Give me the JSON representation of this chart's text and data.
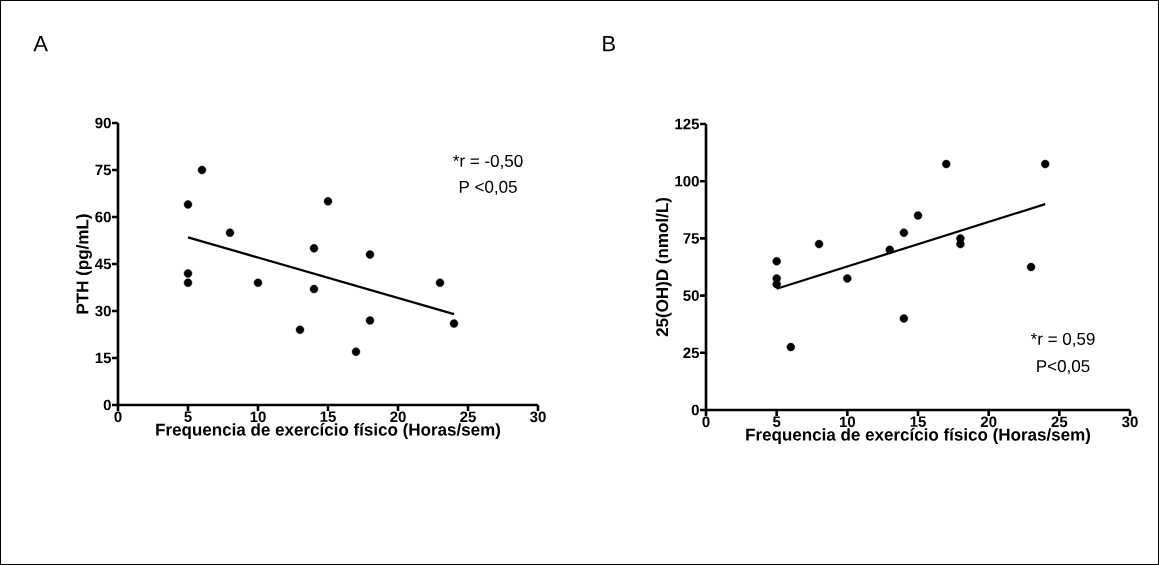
{
  "chart_data": [
    {
      "type": "scatter",
      "title": "A",
      "xlabel": "Frequencia de exercício físico (Horas/sem)",
      "ylabel": "PTH (pg/mL)",
      "xlim": [
        0,
        30
      ],
      "xticks": [
        0,
        5,
        10,
        15,
        20,
        25,
        30
      ],
      "ylim": [
        0,
        90
      ],
      "yticks": [
        0,
        15,
        30,
        45,
        60,
        75,
        90
      ],
      "marker": "circle",
      "annotations": [
        "*r = -0,50",
        "P <0,05"
      ],
      "series": [
        {
          "color": "#000000",
          "x": [
            5,
            5,
            5,
            6,
            8,
            10,
            13,
            14,
            14,
            15,
            17,
            18,
            18,
            23,
            24
          ],
          "values": [
            64,
            42,
            39,
            75,
            55,
            39,
            24,
            50,
            37,
            65,
            17,
            48,
            27,
            39,
            26
          ]
        },
        {
          "type": "line",
          "marker": "none",
          "color": "#000000",
          "x": [
            5,
            24
          ],
          "values": [
            53.5,
            29
          ]
        }
      ]
    },
    {
      "type": "scatter",
      "title": "B",
      "xlabel": "Frequencia de exercício físico (Horas/sem)",
      "ylabel": "25(OH)D (nmol/L)",
      "xlim": [
        0,
        30
      ],
      "xticks": [
        0,
        5,
        10,
        15,
        20,
        25,
        30
      ],
      "ylim": [
        0,
        125
      ],
      "yticks": [
        0,
        25,
        50,
        75,
        100,
        125
      ],
      "marker": "circle",
      "annotations": [
        "*r = 0,59",
        "P<0,05"
      ],
      "series": [
        {
          "color": "#000000",
          "x": [
            5,
            5,
            5,
            6,
            8,
            10,
            13,
            14,
            14,
            15,
            17,
            18,
            18,
            23,
            24
          ],
          "values": [
            65,
            57.5,
            55,
            27.5,
            72.5,
            57.5,
            70,
            77.5,
            40,
            85,
            107.5,
            75,
            72.5,
            62.5,
            107.5
          ]
        },
        {
          "type": "line",
          "marker": "none",
          "color": "#000000",
          "x": [
            5,
            24
          ],
          "values": [
            53,
            90
          ]
        }
      ]
    }
  ]
}
